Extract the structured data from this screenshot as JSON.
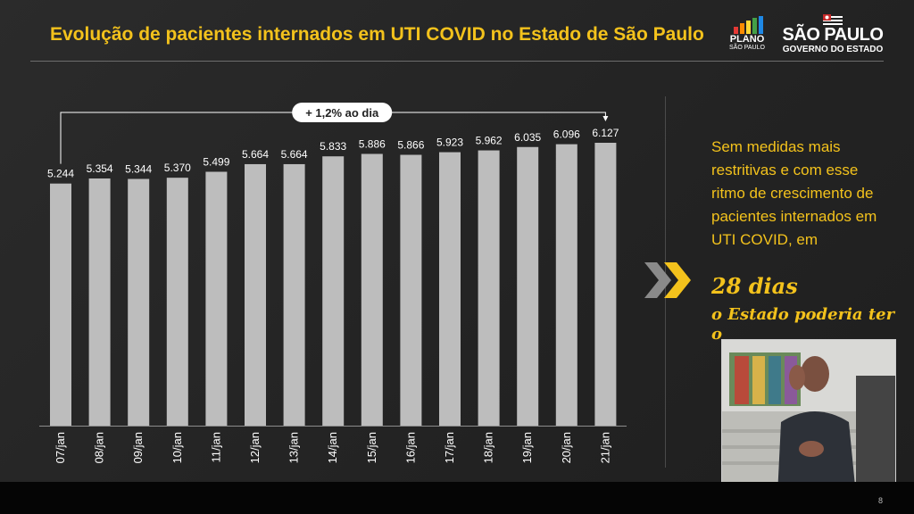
{
  "header": {
    "title": "Evolução de pacientes internados em UTI COVID no Estado de São Paulo",
    "logo_plano": "PLANO",
    "logo_plano_sub": "SÃO PAULO",
    "logo_sp": "SÃO PAULO",
    "logo_sp_sub": "GOVERNO DO ESTADO"
  },
  "annotation": "+ 1,2% ao dia",
  "side": {
    "text": "Sem medidas mais restritivas e com esse ritmo de crescimento de pacientes internados em UTI COVID, em",
    "emphasis": "28 dias",
    "continuation": "o Estado poderia ter o"
  },
  "page_number": "8",
  "colors": {
    "accent": "#f3c21c",
    "bar": "#bdbdbd",
    "background": "#262626"
  },
  "chart_data": {
    "type": "bar",
    "title": "",
    "xlabel": "",
    "ylabel": "",
    "categories": [
      "07/jan",
      "08/jan",
      "09/jan",
      "10/jan",
      "11/jan",
      "12/jan",
      "13/jan",
      "14/jan",
      "15/jan",
      "16/jan",
      "17/jan",
      "18/jan",
      "19/jan",
      "20/jan",
      "21/jan"
    ],
    "values": [
      5244,
      5354,
      5344,
      5370,
      5499,
      5664,
      5664,
      5833,
      5886,
      5866,
      5923,
      5962,
      6035,
      6096,
      6127
    ],
    "value_labels": [
      "5.244",
      "5.354",
      "5.344",
      "5.370",
      "5.499",
      "5.664",
      "5.664",
      "5.833",
      "5.886",
      "5.866",
      "5.923",
      "5.962",
      "6.035",
      "6.096",
      "6.127"
    ],
    "ylim": [
      0,
      6127
    ],
    "grid": false
  }
}
